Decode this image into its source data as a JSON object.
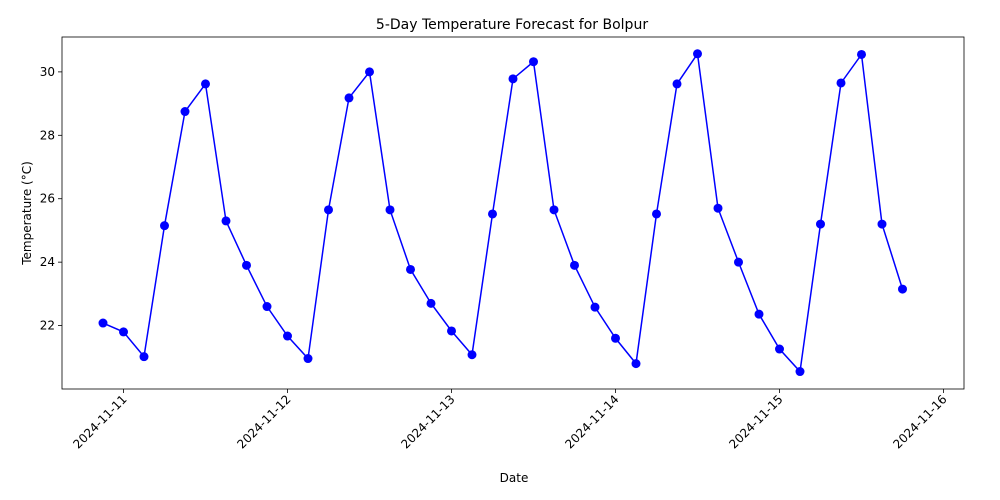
{
  "chart_data": {
    "type": "line",
    "title": "5-Day Temperature Forecast for Bolpur",
    "xlabel": "Date",
    "ylabel": "Temperature (°C)",
    "x_ticks": [
      "2024-11-11",
      "2024-11-12",
      "2024-11-13",
      "2024-11-14",
      "2024-11-15",
      "2024-11-16"
    ],
    "y_ticks": [
      22,
      24,
      26,
      28,
      30
    ],
    "xlim": [
      "2024-11-10 15:00",
      "2024-11-16 03:00"
    ],
    "ylim": [
      20.0,
      31.1
    ],
    "grid": false,
    "line_color": "#0000ff",
    "marker": "circle",
    "series": [
      {
        "points": [
          {
            "x": "2024-11-10 21:00",
            "y": 22.08
          },
          {
            "x": "2024-11-11 00:00",
            "y": 21.8
          },
          {
            "x": "2024-11-11 03:00",
            "y": 21.02
          },
          {
            "x": "2024-11-11 06:00",
            "y": 25.15
          },
          {
            "x": "2024-11-11 09:00",
            "y": 28.75
          },
          {
            "x": "2024-11-11 12:00",
            "y": 29.62
          },
          {
            "x": "2024-11-11 15:00",
            "y": 25.3
          },
          {
            "x": "2024-11-11 18:00",
            "y": 23.9
          },
          {
            "x": "2024-11-11 21:00",
            "y": 22.6
          },
          {
            "x": "2024-11-12 00:00",
            "y": 21.67
          },
          {
            "x": "2024-11-12 03:00",
            "y": 20.96
          },
          {
            "x": "2024-11-12 06:00",
            "y": 25.65
          },
          {
            "x": "2024-11-12 09:00",
            "y": 29.18
          },
          {
            "x": "2024-11-12 12:00",
            "y": 30.0
          },
          {
            "x": "2024-11-12 15:00",
            "y": 25.65
          },
          {
            "x": "2024-11-12 18:00",
            "y": 23.77
          },
          {
            "x": "2024-11-12 21:00",
            "y": 22.7
          },
          {
            "x": "2024-11-13 00:00",
            "y": 21.83
          },
          {
            "x": "2024-11-13 03:00",
            "y": 21.08
          },
          {
            "x": "2024-11-13 06:00",
            "y": 25.52
          },
          {
            "x": "2024-11-13 09:00",
            "y": 29.78
          },
          {
            "x": "2024-11-13 12:00",
            "y": 30.32
          },
          {
            "x": "2024-11-13 15:00",
            "y": 25.65
          },
          {
            "x": "2024-11-13 18:00",
            "y": 23.9
          },
          {
            "x": "2024-11-13 21:00",
            "y": 22.58
          },
          {
            "x": "2024-11-14 00:00",
            "y": 21.6
          },
          {
            "x": "2024-11-14 03:00",
            "y": 20.8
          },
          {
            "x": "2024-11-14 06:00",
            "y": 25.52
          },
          {
            "x": "2024-11-14 09:00",
            "y": 29.62
          },
          {
            "x": "2024-11-14 12:00",
            "y": 30.57
          },
          {
            "x": "2024-11-14 15:00",
            "y": 25.7
          },
          {
            "x": "2024-11-14 18:00",
            "y": 24.0
          },
          {
            "x": "2024-11-14 21:00",
            "y": 22.36
          },
          {
            "x": "2024-11-15 00:00",
            "y": 21.26
          },
          {
            "x": "2024-11-15 03:00",
            "y": 20.55
          },
          {
            "x": "2024-11-15 06:00",
            "y": 25.2
          },
          {
            "x": "2024-11-15 09:00",
            "y": 29.65
          },
          {
            "x": "2024-11-15 12:00",
            "y": 30.55
          },
          {
            "x": "2024-11-15 15:00",
            "y": 25.2
          },
          {
            "x": "2024-11-15 18:00",
            "y": 23.15
          }
        ]
      }
    ]
  }
}
